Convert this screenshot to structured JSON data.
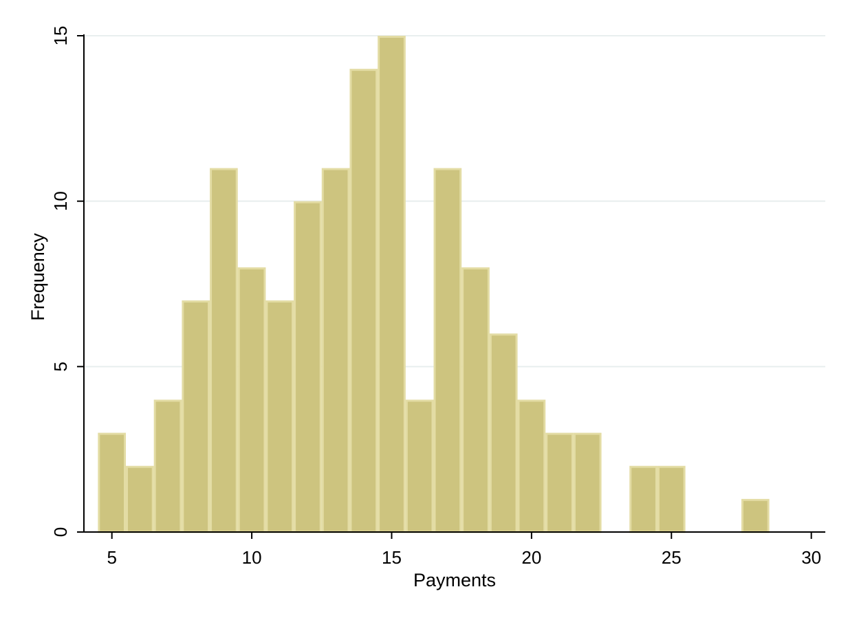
{
  "chart_data": {
    "type": "bar",
    "subtype": "histogram",
    "title": "",
    "xlabel": "Payments",
    "ylabel": "Frequency",
    "xlim": [
      4,
      30.5
    ],
    "ylim": [
      0,
      15
    ],
    "x_ticks": [
      5,
      10,
      15,
      20,
      25,
      30
    ],
    "y_ticks": [
      0,
      5,
      10,
      15
    ],
    "grid": true,
    "bin_width": 1,
    "bins": [
      {
        "x": 5,
        "count": 3
      },
      {
        "x": 6,
        "count": 2
      },
      {
        "x": 7,
        "count": 4
      },
      {
        "x": 8,
        "count": 7
      },
      {
        "x": 9,
        "count": 11
      },
      {
        "x": 10,
        "count": 8
      },
      {
        "x": 11,
        "count": 7
      },
      {
        "x": 12,
        "count": 10
      },
      {
        "x": 13,
        "count": 11
      },
      {
        "x": 14,
        "count": 14
      },
      {
        "x": 15,
        "count": 15
      },
      {
        "x": 16,
        "count": 4
      },
      {
        "x": 17,
        "count": 11
      },
      {
        "x": 18,
        "count": 8
      },
      {
        "x": 19,
        "count": 6
      },
      {
        "x": 20,
        "count": 4
      },
      {
        "x": 21,
        "count": 3
      },
      {
        "x": 22,
        "count": 3
      },
      {
        "x": 23,
        "count": 0
      },
      {
        "x": 24,
        "count": 2
      },
      {
        "x": 25,
        "count": 2
      },
      {
        "x": 26,
        "count": 0
      },
      {
        "x": 27,
        "count": 0
      },
      {
        "x": 28,
        "count": 1
      }
    ],
    "colors": {
      "bar_fill": "#CDC47F",
      "bar_edge": "#E3DCA4",
      "gridline": "#E8EEEE",
      "axis": "#000000"
    }
  }
}
